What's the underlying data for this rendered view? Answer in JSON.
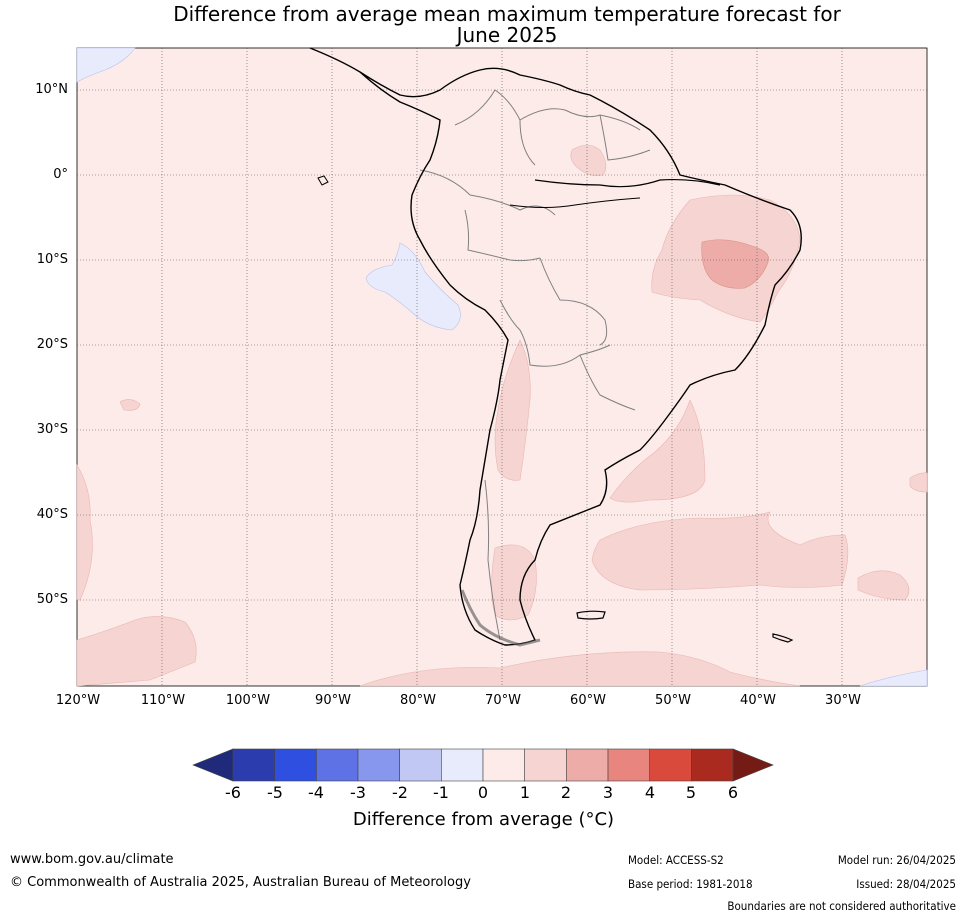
{
  "title": {
    "line1": "Difference from average mean maximum temperature forecast for",
    "line2": "June 2025"
  },
  "map": {
    "lat_labels": [
      "10°N",
      "0°",
      "10°S",
      "20°S",
      "30°S",
      "40°S",
      "50°S"
    ],
    "lon_labels": [
      "120°W",
      "110°W",
      "100°W",
      "90°W",
      "80°W",
      "70°W",
      "60°W",
      "50°W",
      "40°W",
      "30°W"
    ],
    "base_color": "#fcebe9",
    "land_outline_color": "#000000",
    "border_color": "#808080"
  },
  "colorbar": {
    "ticks": [
      "-6",
      "-5",
      "-4",
      "-3",
      "-2",
      "-1",
      "0",
      "1",
      "2",
      "3",
      "4",
      "5",
      "6"
    ],
    "colors": [
      "#1f2a7a",
      "#2b3cae",
      "#2f4fe0",
      "#5e72e6",
      "#8797ee",
      "#c1c8f3",
      "#e8ebfb",
      "#fcebe9",
      "#f5d4d2",
      "#edaca8",
      "#e8857e",
      "#da4a3c",
      "#ab2a20",
      "#741b16"
    ],
    "label": "Difference from average (°C)"
  },
  "footer": {
    "url": "www.bom.gov.au/climate",
    "copyright": "© Commonwealth of Australia 2025, Australian Bureau of Meteorology",
    "model": "Model: ACCESS-S2",
    "base_period": "Base period: 1981-2018",
    "model_run": "Model run: 26/04/2025",
    "issued": "Issued: 28/04/2025",
    "disclaimer": "Boundaries are not considered authoritative"
  }
}
